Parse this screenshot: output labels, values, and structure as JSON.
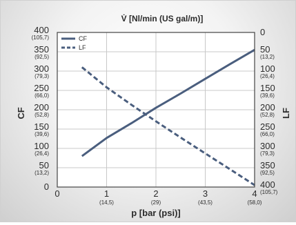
{
  "chart_data": {
    "type": "line",
    "title": "V̇ [Nl/min (US gal/m)]",
    "xlabel": "p [bar (psi)]",
    "ylabel": "CF",
    "ylabel_right": "LF",
    "xlim": [
      0,
      4
    ],
    "ylim": [
      0,
      400
    ],
    "x_ticks": [
      {
        "value": 0,
        "label": "0",
        "sub": ""
      },
      {
        "value": 1,
        "label": "1",
        "sub": "(14,5)"
      },
      {
        "value": 2,
        "label": "2",
        "sub": "(29)"
      },
      {
        "value": 3,
        "label": "3",
        "sub": "(43,5)"
      },
      {
        "value": 4,
        "label": "4",
        "sub": "(58,0)"
      }
    ],
    "y_ticks_left": [
      {
        "value": 0,
        "label": "0",
        "sub": ""
      },
      {
        "value": 50,
        "label": "50",
        "sub": "(13,2)"
      },
      {
        "value": 100,
        "label": "100",
        "sub": "(26,4)"
      },
      {
        "value": 150,
        "label": "150",
        "sub": "(39,6)"
      },
      {
        "value": 200,
        "label": "200",
        "sub": "(52,8)"
      },
      {
        "value": 250,
        "label": "250",
        "sub": "(66,0)"
      },
      {
        "value": 300,
        "label": "300",
        "sub": "(79,3)"
      },
      {
        "value": 350,
        "label": "350",
        "sub": "(92,5)"
      },
      {
        "value": 400,
        "label": "400",
        "sub": "(105,7)"
      }
    ],
    "y_ticks_right": [
      {
        "value": 0,
        "label": "0",
        "sub": ""
      },
      {
        "value": 50,
        "label": "50",
        "sub": "(13,2)"
      },
      {
        "value": 100,
        "label": "100",
        "sub": "(26,4)"
      },
      {
        "value": 150,
        "label": "150",
        "sub": "(39,6)"
      },
      {
        "value": 200,
        "label": "200",
        "sub": "(52,8)"
      },
      {
        "value": 250,
        "label": "250",
        "sub": "(66,0)"
      },
      {
        "value": 300,
        "label": "300",
        "sub": "(79,3)"
      },
      {
        "value": 350,
        "label": "350",
        "sub": "(92,5)"
      },
      {
        "value": 400,
        "label": "400",
        "sub": "(105,7)"
      }
    ],
    "right_axis_inverted": true,
    "grid": true,
    "legend_position": "top-left",
    "series": [
      {
        "name": "CF",
        "style": "solid",
        "color": "#4a5e7e",
        "x": [
          0.5,
          1.0,
          1.5,
          2.0,
          2.5,
          3.0,
          3.5,
          4.0
        ],
        "y": [
          80,
          127,
          165,
          205,
          242,
          280,
          318,
          355
        ]
      },
      {
        "name": "LF",
        "style": "dashed",
        "color": "#4a5e7e",
        "x": [
          0.5,
          1.0,
          1.5,
          2.0,
          2.5,
          3.0,
          3.5,
          4.0
        ],
        "y": [
          310,
          258,
          213,
          170,
          128,
          87,
          46,
          5
        ]
      }
    ]
  }
}
